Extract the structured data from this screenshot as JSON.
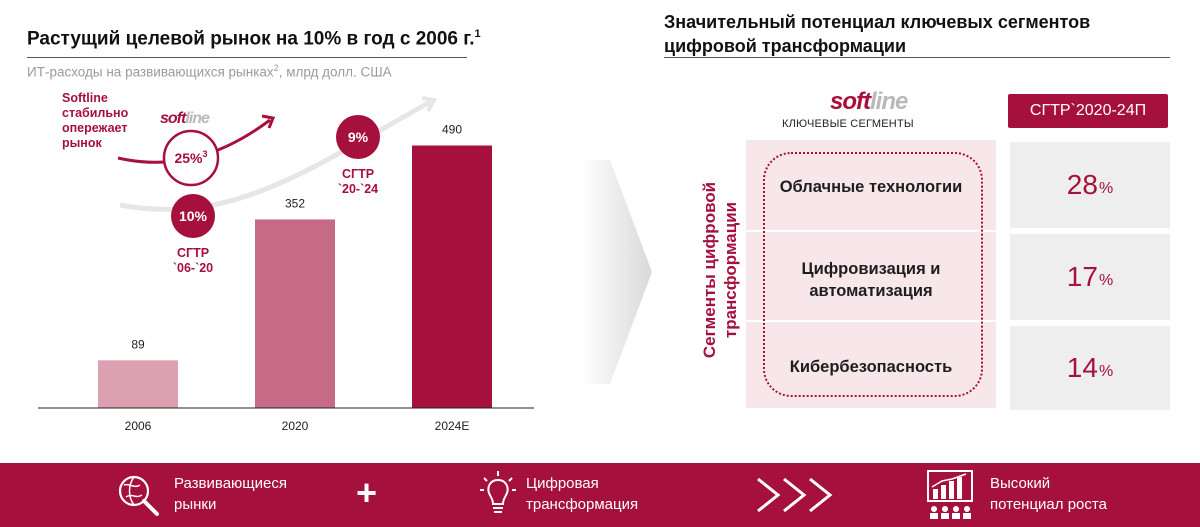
{
  "left": {
    "title": "Растущий целевой рынок на 10% в год с 2006 г.",
    "title_sup": "1",
    "subtitle": "ИТ-расходы на развивающихся рынках",
    "subtitle_sup": "2",
    "subtitle_tail": ", млрд долл. США",
    "logo_soft": "soft",
    "logo_line": "line",
    "softline_note": [
      "Softline",
      "стабильно",
      "опережает",
      "рынок"
    ],
    "bubble_softline": "25%",
    "bubble_softline_sup": "3",
    "bubble_market_1": "10%",
    "bubble_market_1_label": [
      "СГТР",
      "`06-`20"
    ],
    "bubble_market_2": "9%",
    "bubble_market_2_label": [
      "СГТР",
      "`20-`24"
    ]
  },
  "chart_data": {
    "type": "bar",
    "categories": [
      "2006",
      "2020",
      "2024E"
    ],
    "values": [
      89,
      352,
      490
    ],
    "title": "Растущий целевой рынок на 10% в год с 2006 г.",
    "ylabel": "",
    "xlabel": "",
    "ylim": [
      0,
      560
    ],
    "bar_colors": [
      "#dba1b0",
      "#c56b87",
      "#a6103c"
    ]
  },
  "right": {
    "title_line1": "Значительный потенциал ключевых сегментов",
    "title_line2": "цифровой трансформации",
    "logo_soft": "soft",
    "logo_line": "line",
    "segments_label": "КЛЮЧЕВЫЕ СЕГМЕНТЫ",
    "cagr_header": "СГТР`2020-24П",
    "vertical_label_line1": "Сегменты цифровой",
    "vertical_label_line2": "трансформации",
    "segments": [
      {
        "name_line1": "Облачные технологии",
        "name_line2": "",
        "cagr": "28",
        "unit": "%"
      },
      {
        "name_line1": "Цифровизация и",
        "name_line2": "автоматизация",
        "cagr": "17",
        "unit": "%"
      },
      {
        "name_line1": "Кибербезопасность",
        "name_line2": "",
        "cagr": "14",
        "unit": "%"
      }
    ]
  },
  "footer": {
    "item1_line1": "Развивающиеся",
    "item1_line2": "рынки",
    "item2_line1": "Цифровая",
    "item2_line2": "трансформация",
    "item3_line1": "Высокий",
    "item3_line2": "потенциал роста",
    "plus": "+"
  },
  "colors": {
    "brand": "#a6103c",
    "pink_light": "#f7e6ea",
    "gray_box": "#eeeeee"
  }
}
